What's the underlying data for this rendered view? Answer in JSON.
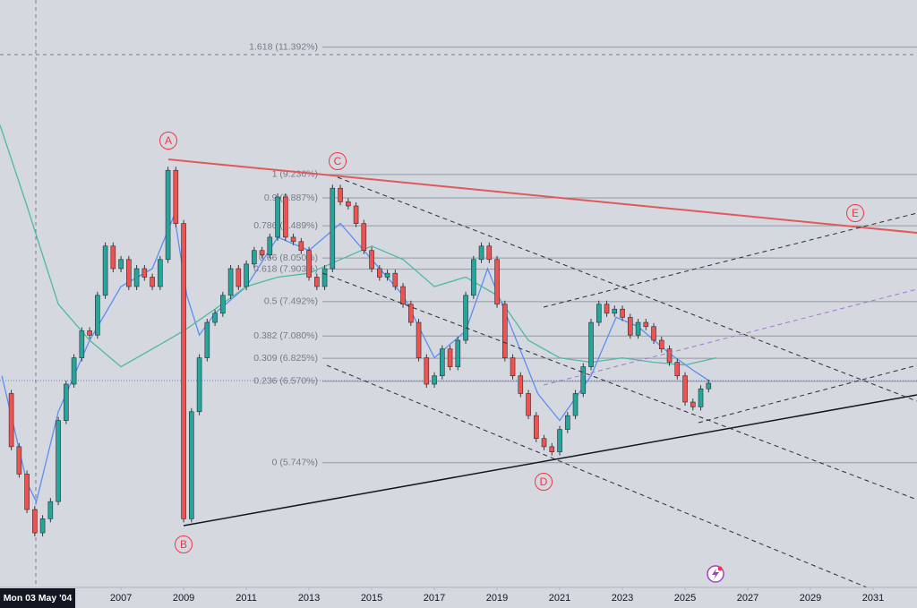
{
  "chart_data": {
    "type": "candlestick",
    "crosshair_label": "Mon 03 May '04",
    "annotations": [
      "A",
      "B",
      "C",
      "D",
      "E"
    ],
    "yscale": "log",
    "ylim": [
      4.68,
      12.31
    ],
    "xlim": [
      2003.14,
      2032.4
    ],
    "xticks": [
      2007,
      2009,
      2011,
      2013,
      2015,
      2017,
      2019,
      2021,
      2023,
      2025,
      2027,
      2029,
      2031
    ],
    "fib_levels": [
      {
        "value": 11.392,
        "label": "1.618 (11.392%)"
      },
      {
        "value": 9.236,
        "label": "1 (9.236%)"
      },
      {
        "value": 8.887,
        "label": "0.9 (8.887%)"
      },
      {
        "value": 8.489,
        "label": "0.786 (8.489%)"
      },
      {
        "value": 8.05,
        "label": "0.66 (8.050%)"
      },
      {
        "value": 7.903,
        "label": "0.618 (7.903%)"
      },
      {
        "value": 7.492,
        "label": "0.5 (7.492%)"
      },
      {
        "value": 7.08,
        "label": "0.382 (7.080%)"
      },
      {
        "value": 6.825,
        "label": "0.309 (6.825%)"
      },
      {
        "value": 6.57,
        "label": "0.236 (6.570%)"
      },
      {
        "value": 5.747,
        "label": "0 (5.747%)"
      }
    ],
    "up_color": "#26a69a",
    "down_color": "#ef5350",
    "series": [
      {
        "x": [
          2003.25,
          2003.5,
          2003.75,
          2004.0,
          2004.25,
          2004.5,
          2004.75,
          2005.0,
          2005.25,
          2005.5,
          2005.75,
          2006.0,
          2006.25,
          2006.5,
          2006.75,
          2007.0,
          2007.25,
          2007.5,
          2007.75,
          2008.0,
          2008.25,
          2008.5,
          2008.75,
          2009.0,
          2009.25,
          2009.5,
          2009.75,
          2010.0,
          2010.25,
          2010.5,
          2010.75,
          2011.0,
          2011.25,
          2011.5,
          2011.75,
          2012.0,
          2012.25,
          2012.5,
          2012.75,
          2013.0,
          2013.25,
          2013.5,
          2013.75,
          2014.0,
          2014.25,
          2014.5,
          2014.75,
          2015.0,
          2015.25,
          2015.5,
          2015.75,
          2016.0,
          2016.25,
          2016.5,
          2016.75,
          2017.0,
          2017.25,
          2017.5,
          2017.75,
          2018.0,
          2018.25,
          2018.5,
          2018.75,
          2019.0,
          2019.25,
          2019.5,
          2019.75,
          2020.0,
          2020.25,
          2020.5,
          2020.75,
          2021.0,
          2021.25,
          2021.5,
          2021.75,
          2022.0,
          2022.25,
          2022.5,
          2022.75,
          2023.0,
          2023.25,
          2023.5,
          2023.75,
          2024.0,
          2024.25,
          2024.5,
          2024.75,
          2025.0,
          2025.25,
          2025.5,
          2025.75
        ],
        "values": [
          6.44,
          5.9,
          5.64,
          5.32,
          5.12,
          5.24,
          5.39,
          6.16,
          6.54,
          6.83,
          7.14,
          7.09,
          7.57,
          8.21,
          7.91,
          8.03,
          7.68,
          7.91,
          7.8,
          7.68,
          8.03,
          9.3,
          8.52,
          5.24,
          6.25,
          6.83,
          7.24,
          7.35,
          7.57,
          7.91,
          7.68,
          7.97,
          8.15,
          8.09,
          8.33,
          8.9,
          8.33,
          8.27,
          8.15,
          7.8,
          7.68,
          7.91,
          9.03,
          8.83,
          8.77,
          8.52,
          8.15,
          7.91,
          7.8,
          7.85,
          7.68,
          7.46,
          7.24,
          6.83,
          6.54,
          6.63,
          6.93,
          6.73,
          7.03,
          7.57,
          8.03,
          8.21,
          8.03,
          7.46,
          6.83,
          6.63,
          6.44,
          6.21,
          5.98,
          5.9,
          5.85,
          6.07,
          6.21,
          6.44,
          6.73,
          7.24,
          7.46,
          7.35,
          7.4,
          7.3,
          7.09,
          7.24,
          7.19,
          7.03,
          6.93,
          6.78,
          6.63,
          6.35,
          6.3,
          6.49,
          6.55
        ]
      },
      {
        "type": "line",
        "color": "#5b8ff0",
        "x": [
          2003.2,
          2004.0,
          2004.3,
          2005,
          2006,
          2007,
          2008,
          2008.7,
          2009.1,
          2009.5,
          2010,
          2011,
          2012,
          2013,
          2014,
          2015,
          2016,
          2017,
          2018,
          2018.7,
          2019.5,
          2020.3,
          2021,
          2022,
          2022.8,
          2023.5,
          2024.5,
          2025.3,
          2025.8
        ],
        "values": [
          6.63,
          5.56,
          5.39,
          6.25,
          7.03,
          7.68,
          7.91,
          8.64,
          7.57,
          7.09,
          7.35,
          7.68,
          8.33,
          8.15,
          8.52,
          8.03,
          7.57,
          6.83,
          7.14,
          7.91,
          7.14,
          6.44,
          6.16,
          6.63,
          7.3,
          7.19,
          6.88,
          6.68,
          6.57
        ]
      },
      {
        "type": "line",
        "color": "#4fb9a5",
        "x": [
          2003.14,
          2004,
          2005,
          2006,
          2007,
          2008,
          2009,
          2010,
          2011,
          2012,
          2013,
          2014,
          2015,
          2016,
          2017,
          2018,
          2019,
          2020,
          2021,
          2022,
          2023,
          2024,
          2025,
          2026
        ],
        "values": [
          10.02,
          8.77,
          7.46,
          7.03,
          6.73,
          6.93,
          7.14,
          7.4,
          7.68,
          7.8,
          7.85,
          8.03,
          8.21,
          8.03,
          7.68,
          7.8,
          7.57,
          7.03,
          6.83,
          6.78,
          6.83,
          6.78,
          6.75,
          6.83
        ]
      }
    ]
  }
}
